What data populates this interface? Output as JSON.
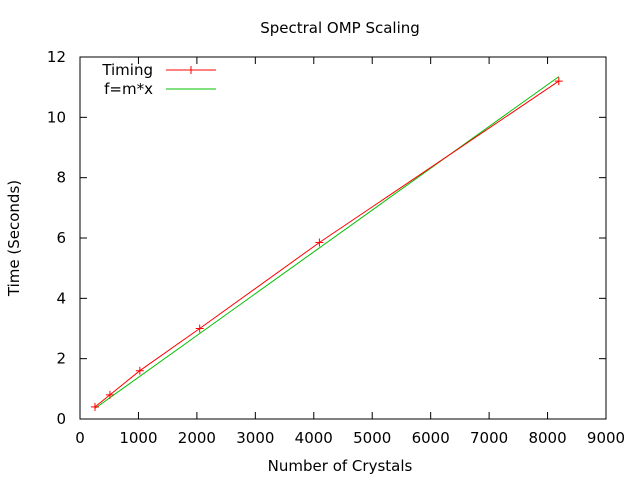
{
  "chart_data": {
    "type": "line",
    "title": "Spectral OMP Scaling",
    "xlabel": "Number of Crystals",
    "ylabel": "Time (Seconds)",
    "xlim": [
      0,
      9000
    ],
    "ylim": [
      0,
      12
    ],
    "xticks": [
      "0",
      "1000",
      "2000",
      "3000",
      "4000",
      "5000",
      "6000",
      "7000",
      "8000",
      "9000"
    ],
    "yticks": [
      "0",
      "2",
      "4",
      "6",
      "8",
      "10",
      "12"
    ],
    "grid": false,
    "legend_position": "top-left",
    "series": [
      {
        "name": "Timing",
        "color": "#ff0000",
        "marker": "plus",
        "x": [
          256,
          512,
          1024,
          2048,
          4096,
          8192
        ],
        "y": [
          0.4,
          0.8,
          1.6,
          3.0,
          5.85,
          11.2
        ]
      },
      {
        "name": "f=m*x",
        "color": "#00c000",
        "marker": "none",
        "x": [
          256,
          8192
        ],
        "y": [
          0.35,
          11.35
        ]
      }
    ]
  }
}
